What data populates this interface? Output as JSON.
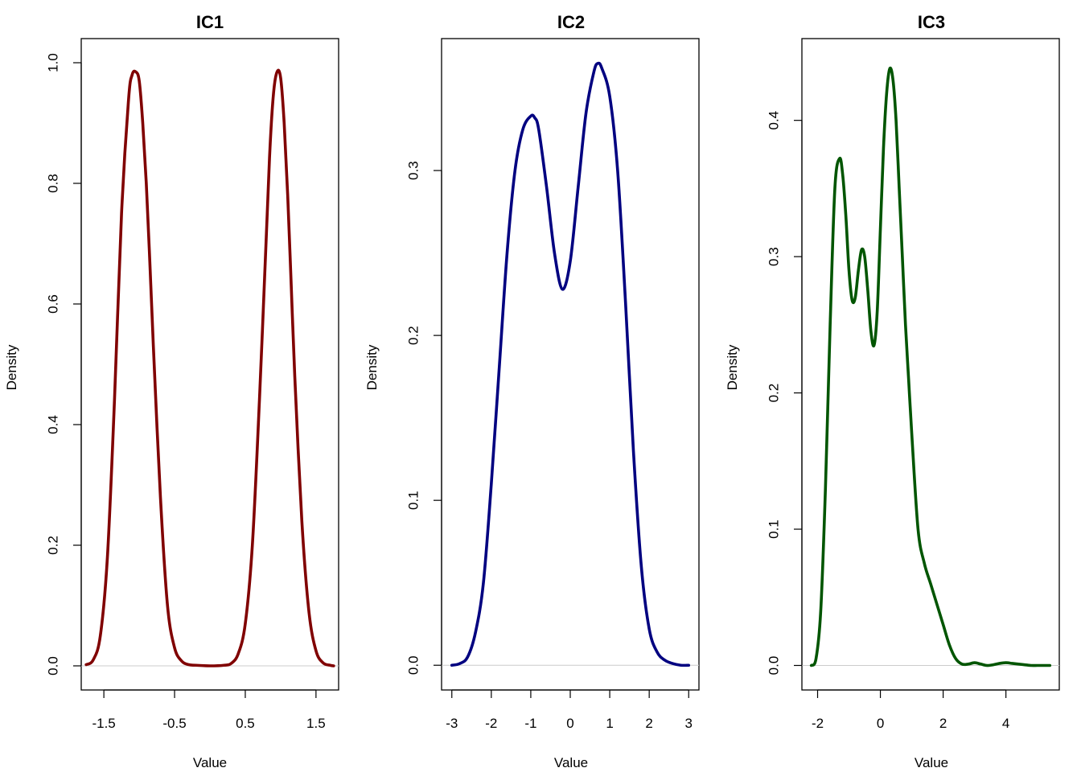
{
  "chart_data": [
    {
      "type": "line",
      "title": "IC1",
      "xlabel": "Value",
      "ylabel": "Density",
      "xlim": [
        -1.82,
        1.82
      ],
      "ylim": [
        -0.04,
        1.04
      ],
      "xticks": [
        -1.5,
        -0.5,
        0.5,
        1.5
      ],
      "xtick_labels": [
        "-1.5",
        "-0.5",
        "0.5",
        "1.5"
      ],
      "yticks": [
        0.0,
        0.2,
        0.4,
        0.6,
        0.8,
        1.0
      ],
      "ytick_labels": [
        "0.0",
        "0.2",
        "0.4",
        "0.6",
        "0.8",
        "1.0"
      ],
      "zero_line": true,
      "color": "#800000",
      "series": [
        {
          "x": [
            -1.75,
            -1.65,
            -1.55,
            -1.45,
            -1.35,
            -1.25,
            -1.15,
            -1.1,
            -1.05,
            -1.0,
            -0.95,
            -0.9,
            -0.85,
            -0.8,
            -0.7,
            -0.6,
            -0.5,
            -0.4,
            -0.3,
            -0.2,
            0.0,
            0.2,
            0.3,
            0.4,
            0.5,
            0.6,
            0.7,
            0.8,
            0.85,
            0.9,
            0.95,
            1.0,
            1.05,
            1.1,
            1.15,
            1.2,
            1.3,
            1.4,
            1.5,
            1.6,
            1.7,
            1.75
          ],
          "y": [
            0.002,
            0.01,
            0.05,
            0.18,
            0.44,
            0.75,
            0.94,
            0.98,
            0.985,
            0.97,
            0.9,
            0.8,
            0.67,
            0.53,
            0.28,
            0.1,
            0.03,
            0.008,
            0.002,
            0.001,
            0.0,
            0.001,
            0.004,
            0.02,
            0.07,
            0.2,
            0.44,
            0.72,
            0.86,
            0.95,
            0.985,
            0.975,
            0.9,
            0.78,
            0.63,
            0.48,
            0.24,
            0.09,
            0.025,
            0.005,
            0.001,
            0.0
          ]
        }
      ]
    },
    {
      "type": "line",
      "title": "IC2",
      "xlabel": "Value",
      "ylabel": "Density",
      "xlim": [
        -3.26,
        3.26
      ],
      "ylim": [
        -0.015,
        0.38
      ],
      "xticks": [
        -3,
        -2,
        -1,
        0,
        1,
        2,
        3
      ],
      "xtick_labels": [
        "-3",
        "-2",
        "-1",
        "0",
        "1",
        "2",
        "3"
      ],
      "yticks": [
        0.0,
        0.1,
        0.2,
        0.3
      ],
      "ytick_labels": [
        "0.0",
        "0.1",
        "0.2",
        "0.3"
      ],
      "zero_line": true,
      "color": "#000080",
      "series": [
        {
          "x": [
            -3.0,
            -2.8,
            -2.6,
            -2.4,
            -2.2,
            -2.0,
            -1.8,
            -1.6,
            -1.4,
            -1.2,
            -1.0,
            -0.9,
            -0.8,
            -0.6,
            -0.4,
            -0.2,
            0.0,
            0.2,
            0.4,
            0.6,
            0.7,
            0.8,
            1.0,
            1.2,
            1.4,
            1.6,
            1.8,
            2.0,
            2.2,
            2.4,
            2.6,
            2.8,
            3.0
          ],
          "y": [
            0.0,
            0.001,
            0.005,
            0.02,
            0.05,
            0.11,
            0.18,
            0.25,
            0.3,
            0.325,
            0.333,
            0.332,
            0.325,
            0.29,
            0.25,
            0.228,
            0.245,
            0.29,
            0.335,
            0.36,
            0.365,
            0.362,
            0.345,
            0.3,
            0.22,
            0.13,
            0.06,
            0.022,
            0.008,
            0.003,
            0.001,
            0.0,
            0.0
          ]
        }
      ]
    },
    {
      "type": "line",
      "title": "IC3",
      "xlabel": "Value",
      "ylabel": "Density",
      "xlim": [
        -2.5,
        5.7
      ],
      "ylim": [
        -0.018,
        0.46
      ],
      "xticks": [
        -2,
        0,
        2,
        4
      ],
      "xtick_labels": [
        "-2",
        "0",
        "2",
        "4"
      ],
      "yticks": [
        0.0,
        0.1,
        0.2,
        0.3,
        0.4
      ],
      "ytick_labels": [
        "0.0",
        "0.1",
        "0.2",
        "0.3",
        "0.4"
      ],
      "zero_line": true,
      "color": "#005500",
      "series": [
        {
          "x": [
            -2.2,
            -2.05,
            -1.9,
            -1.75,
            -1.6,
            -1.45,
            -1.3,
            -1.2,
            -1.1,
            -1.0,
            -0.9,
            -0.8,
            -0.7,
            -0.6,
            -0.5,
            -0.4,
            -0.3,
            -0.2,
            -0.1,
            0.0,
            0.1,
            0.2,
            0.3,
            0.4,
            0.5,
            0.6,
            0.7,
            0.8,
            0.9,
            1.0,
            1.2,
            1.4,
            1.6,
            1.8,
            2.0,
            2.2,
            2.4,
            2.6,
            2.8,
            3.0,
            3.2,
            3.4,
            3.6,
            3.8,
            4.0,
            4.2,
            4.4,
            4.6,
            4.8,
            5.0,
            5.2,
            5.4
          ],
          "y": [
            0.0,
            0.005,
            0.04,
            0.13,
            0.25,
            0.35,
            0.372,
            0.36,
            0.33,
            0.29,
            0.268,
            0.27,
            0.29,
            0.305,
            0.3,
            0.275,
            0.245,
            0.235,
            0.26,
            0.32,
            0.38,
            0.42,
            0.438,
            0.43,
            0.4,
            0.35,
            0.3,
            0.25,
            0.21,
            0.17,
            0.1,
            0.075,
            0.06,
            0.045,
            0.03,
            0.015,
            0.005,
            0.001,
            0.001,
            0.002,
            0.001,
            0.0,
            0.0005,
            0.0015,
            0.002,
            0.0015,
            0.001,
            0.0005,
            0.0,
            0.0,
            0.0,
            0.0
          ]
        }
      ]
    }
  ]
}
